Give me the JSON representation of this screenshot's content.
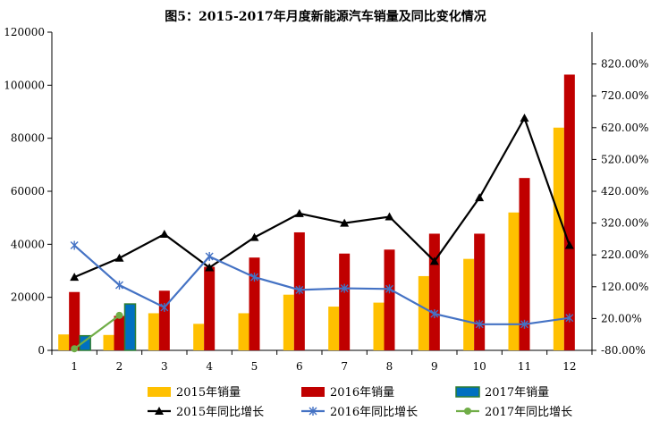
{
  "chart_data": {
    "type": "bar",
    "title": "图5：2015-2017年月度新能源汽车销量及同比变化情况",
    "categories": [
      "1",
      "2",
      "3",
      "4",
      "5",
      "6",
      "7",
      "8",
      "9",
      "10",
      "11",
      "12"
    ],
    "ylim": [
      0,
      120000
    ],
    "y_ticks": [
      "0",
      "20000",
      "40000",
      "60000",
      "80000",
      "100000",
      "120000"
    ],
    "y2lim": [
      -80,
      920
    ],
    "y2_ticks": [
      "-80.00%",
      "20.00%",
      "120.00%",
      "220.00%",
      "320.00%",
      "420.00%",
      "520.00%",
      "620.00%",
      "720.00%",
      "820.00%"
    ],
    "grid": false,
    "legend_position": "bottom",
    "series": [
      {
        "name": "2015年销量",
        "kind": "bar",
        "axis": "left",
        "color": "#FFC000",
        "values": [
          6000,
          5800,
          14000,
          10000,
          14000,
          21000,
          16500,
          18000,
          28000,
          34500,
          52000,
          84000
        ]
      },
      {
        "name": "2016年销量",
        "kind": "bar",
        "axis": "left",
        "color": "#C00000",
        "values": [
          22000,
          13000,
          22500,
          31500,
          35000,
          44500,
          36500,
          38000,
          44000,
          44000,
          65000,
          104000
        ]
      },
      {
        "name": "2017年销量",
        "kind": "bar",
        "axis": "left",
        "color": "#0070C0",
        "values": [
          5500,
          17500,
          null,
          null,
          null,
          null,
          null,
          null,
          null,
          null,
          null,
          null
        ]
      },
      {
        "name": "2015年同比增长",
        "kind": "line",
        "axis": "right",
        "color": "#000000",
        "marker": "triangle",
        "values": [
          150,
          210,
          285,
          180,
          275,
          350,
          320,
          340,
          200,
          400,
          650,
          250
        ]
      },
      {
        "name": "2016年同比增长",
        "kind": "line",
        "axis": "right",
        "color": "#4472C4",
        "marker": "star",
        "values": [
          250,
          125,
          55,
          215,
          150,
          110,
          115,
          113,
          35,
          2,
          2,
          22
        ]
      },
      {
        "name": "2017年同比增长",
        "kind": "line",
        "axis": "right",
        "color": "#70AD47",
        "marker": "circle",
        "values": [
          -75,
          30,
          null,
          null,
          null,
          null,
          null,
          null,
          null,
          null,
          null,
          null
        ]
      }
    ]
  }
}
